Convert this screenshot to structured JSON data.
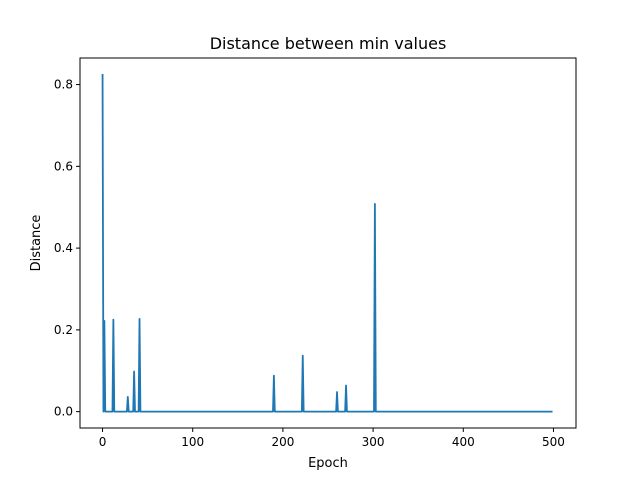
{
  "chart_data": {
    "type": "line",
    "title": "Distance between min values",
    "xlabel": "Epoch",
    "ylabel": "Distance",
    "xlim": [
      -25,
      525
    ],
    "ylim": [
      -0.04,
      0.865
    ],
    "xticks": [
      0,
      100,
      200,
      300,
      400,
      500
    ],
    "yticks": [
      0.0,
      0.2,
      0.4,
      0.6,
      0.8
    ],
    "xtick_labels": [
      "0",
      "100",
      "200",
      "300",
      "400",
      "500"
    ],
    "ytick_labels": [
      "0.0",
      "0.2",
      "0.4",
      "0.6",
      "0.8"
    ],
    "grid": false,
    "legend": "none",
    "series": [
      {
        "color": "#1f77b4",
        "x": [
          0,
          1,
          2,
          3,
          4,
          11,
          12,
          13,
          27,
          28,
          29,
          34,
          35,
          36,
          40,
          41,
          42,
          189,
          190,
          191,
          221,
          222,
          223,
          259,
          260,
          261,
          269,
          270,
          271,
          301,
          302,
          303,
          499
        ],
        "y": [
          0.826,
          0.0,
          0.222,
          0.0,
          0.0,
          0.0,
          0.225,
          0.0,
          0.0,
          0.036,
          0.0,
          0.0,
          0.098,
          0.0,
          0.0,
          0.227,
          0.0,
          0.0,
          0.088,
          0.0,
          0.0,
          0.137,
          0.0,
          0.0,
          0.048,
          0.0,
          0.0,
          0.064,
          0.0,
          0.0,
          0.508,
          0.0,
          0.0
        ]
      }
    ]
  }
}
